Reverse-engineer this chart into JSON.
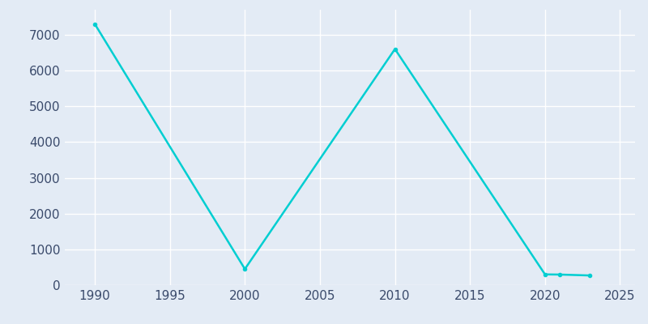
{
  "years": [
    1990,
    2000,
    2010,
    2020,
    2021,
    2023
  ],
  "population": [
    7300,
    450,
    6600,
    300,
    295,
    270
  ],
  "line_color": "#00CED1",
  "marker": "o",
  "marker_size": 3,
  "line_width": 1.8,
  "bg_color": "#E3EBF5",
  "plot_bg_color": "#E3EBF5",
  "xlim": [
    1988,
    2026
  ],
  "ylim": [
    0,
    7700
  ],
  "xticks": [
    1990,
    1995,
    2000,
    2005,
    2010,
    2015,
    2020,
    2025
  ],
  "yticks": [
    0,
    1000,
    2000,
    3000,
    4000,
    5000,
    6000,
    7000
  ]
}
